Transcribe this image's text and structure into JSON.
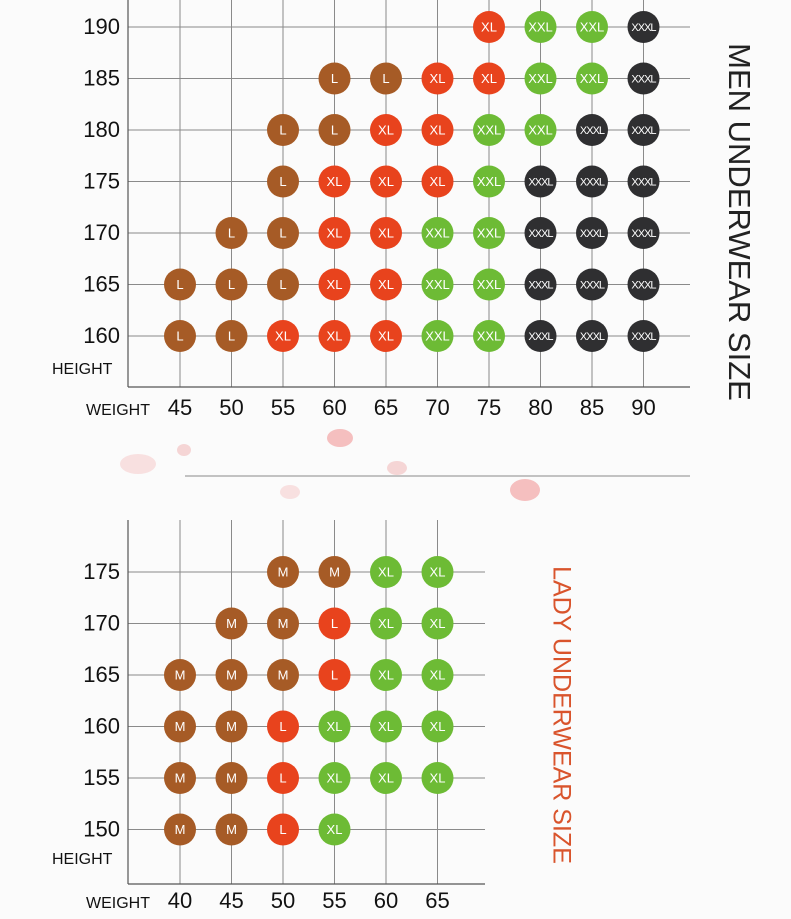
{
  "men": {
    "title": "MEN UNDERWEAR SIZE",
    "height_label": "HEIGHT",
    "weight_label": "WEIGHT",
    "heights": [
      190,
      185,
      180,
      175,
      170,
      165,
      160
    ],
    "weights": [
      45,
      50,
      55,
      60,
      65,
      70,
      75,
      80,
      85,
      90
    ],
    "colors": {
      "L": "#a65b26",
      "XL": "#e8431d",
      "XXL": "#6dbb35",
      "XXXL": "#2f2f31"
    },
    "rows": [
      [
        null,
        null,
        null,
        null,
        null,
        null,
        "XL",
        "XXL",
        "XXL",
        "XXXL"
      ],
      [
        null,
        null,
        null,
        "L",
        "L",
        "XL",
        "XL",
        "XXL",
        "XXL",
        "XXXL"
      ],
      [
        null,
        null,
        "L",
        "L",
        "XL",
        "XL",
        "XXL",
        "XXL",
        "XXXL",
        "XXXL"
      ],
      [
        null,
        null,
        "L",
        "XL",
        "XL",
        "XL",
        "XXL",
        "XXXL",
        "XXXL",
        "XXXL"
      ],
      [
        null,
        "L",
        "L",
        "XL",
        "XL",
        "XXL",
        "XXL",
        "XXXL",
        "XXXL",
        "XXXL"
      ],
      [
        "L",
        "L",
        "L",
        "XL",
        "XL",
        "XXL",
        "XXL",
        "XXXL",
        "XXXL",
        "XXXL"
      ],
      [
        "L",
        "L",
        "XL",
        "XL",
        "XL",
        "XXL",
        "XXL",
        "XXXL",
        "XXXL",
        "XXXL"
      ]
    ]
  },
  "lady": {
    "title": "LADY UNDERWEAR SIZE",
    "height_label": "HEIGHT",
    "weight_label": "WEIGHT",
    "heights": [
      175,
      170,
      165,
      160,
      155,
      150
    ],
    "weights": [
      40,
      45,
      50,
      55,
      60,
      65
    ],
    "colors": {
      "M": "#a65b26",
      "L": "#e8431d",
      "XL": "#6dbb35"
    },
    "rows": [
      [
        null,
        null,
        "M",
        "M",
        "XL",
        "XL"
      ],
      [
        null,
        "M",
        "M",
        "L",
        "XL",
        "XL"
      ],
      [
        "M",
        "M",
        "M",
        "L",
        "XL",
        "XL"
      ],
      [
        "M",
        "M",
        "L",
        "XL",
        "XL",
        "XL"
      ],
      [
        "M",
        "M",
        "L",
        "XL",
        "XL",
        "XL"
      ],
      [
        "M",
        "M",
        "L",
        "XL",
        null,
        null
      ]
    ]
  }
}
